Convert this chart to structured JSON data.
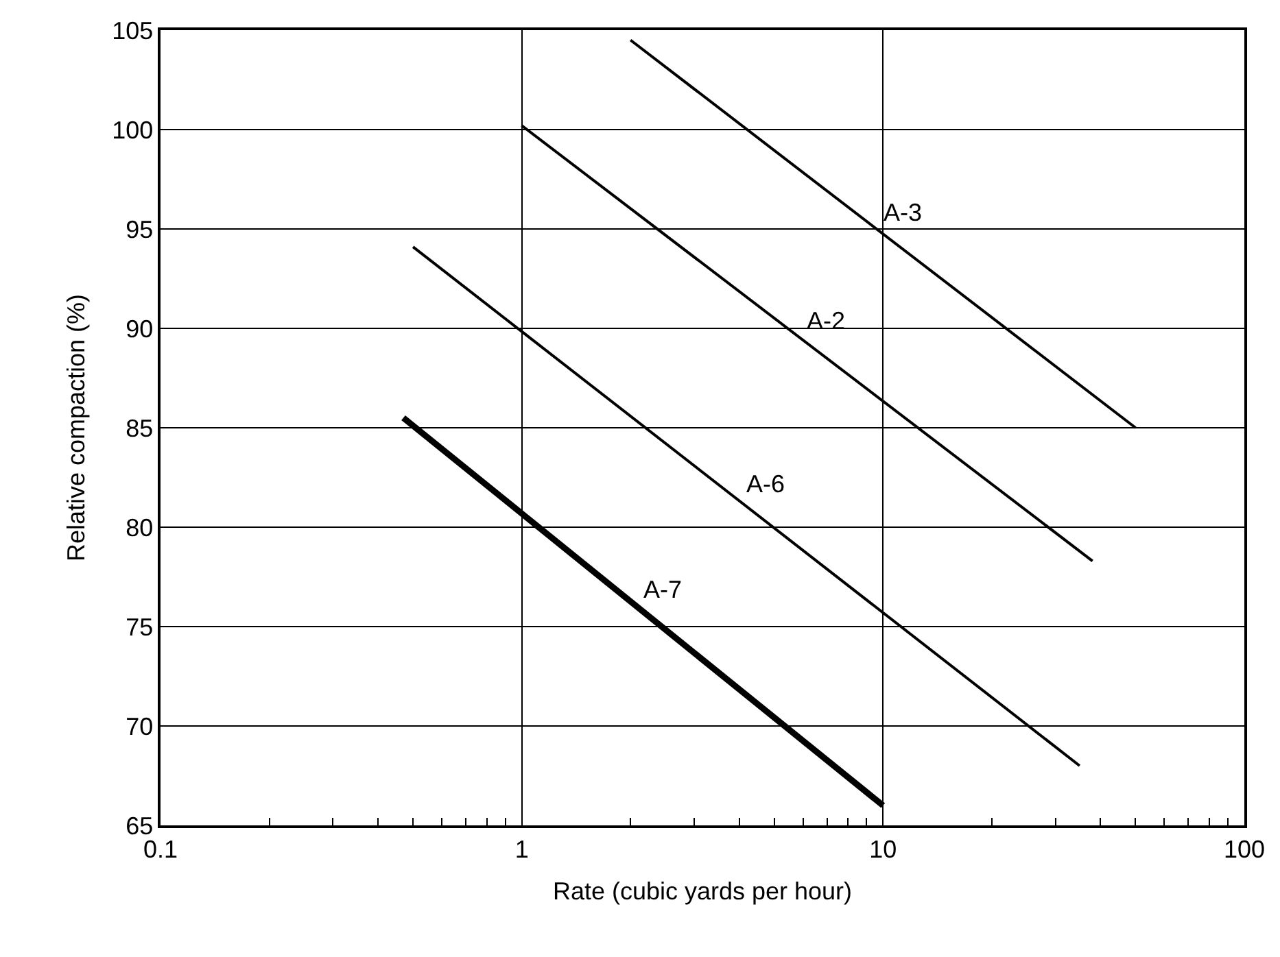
{
  "chart_data": {
    "type": "line",
    "xlabel": "Rate (cubic yards per hour)",
    "ylabel": "Relative compaction (%)",
    "log": "x",
    "grid": true,
    "legend": false,
    "marker": "none",
    "line_style": "solid",
    "xlim": [
      0.1,
      100
    ],
    "xticks": [
      0.1,
      1,
      10,
      100,
      {
        "value": 0.2,
        "label": null
      },
      {
        "value": 0.3,
        "label": null
      },
      {
        "value": 0.4,
        "label": null
      },
      {
        "value": 0.5,
        "label": null
      },
      {
        "value": 0.6,
        "label": null
      },
      {
        "value": 0.7,
        "label": null
      },
      {
        "value": 0.8,
        "label": null
      },
      {
        "value": 0.9,
        "label": null
      },
      {
        "value": 2,
        "label": null
      },
      {
        "value": 3,
        "label": null
      },
      {
        "value": 4,
        "label": null
      },
      {
        "value": 5,
        "label": null
      },
      {
        "value": 6,
        "label": null
      },
      {
        "value": 7,
        "label": null
      },
      {
        "value": 8,
        "label": null
      },
      {
        "value": 9,
        "label": null
      },
      {
        "value": 20,
        "label": null
      },
      {
        "value": 30,
        "label": null
      },
      {
        "value": 40,
        "label": null
      },
      {
        "value": 50,
        "label": null
      },
      {
        "value": 60,
        "label": null
      },
      {
        "value": 70,
        "label": null
      },
      {
        "value": 80,
        "label": null
      },
      {
        "value": 90,
        "label": null
      }
    ],
    "ylim": [
      65,
      105
    ],
    "yticks": [
      65,
      70,
      75,
      80,
      85,
      90,
      95,
      100,
      105
    ],
    "series": [
      {
        "name": "A-3",
        "color": "#000000",
        "x": [
          2.0,
          50
        ],
        "values": [
          104.5,
          85.0
        ]
      },
      {
        "name": "A-2",
        "color": "#000000",
        "x": [
          1.0,
          38
        ],
        "values": [
          100.2,
          78.3
        ]
      },
      {
        "name": "A-6",
        "color": "#000000",
        "x": [
          0.5,
          35
        ],
        "values": [
          94.1,
          68.0
        ]
      },
      {
        "name": "A-7",
        "color": "#000000",
        "x": [
          0.47,
          10
        ],
        "values": [
          85.5,
          66.0
        ]
      }
    ]
  }
}
